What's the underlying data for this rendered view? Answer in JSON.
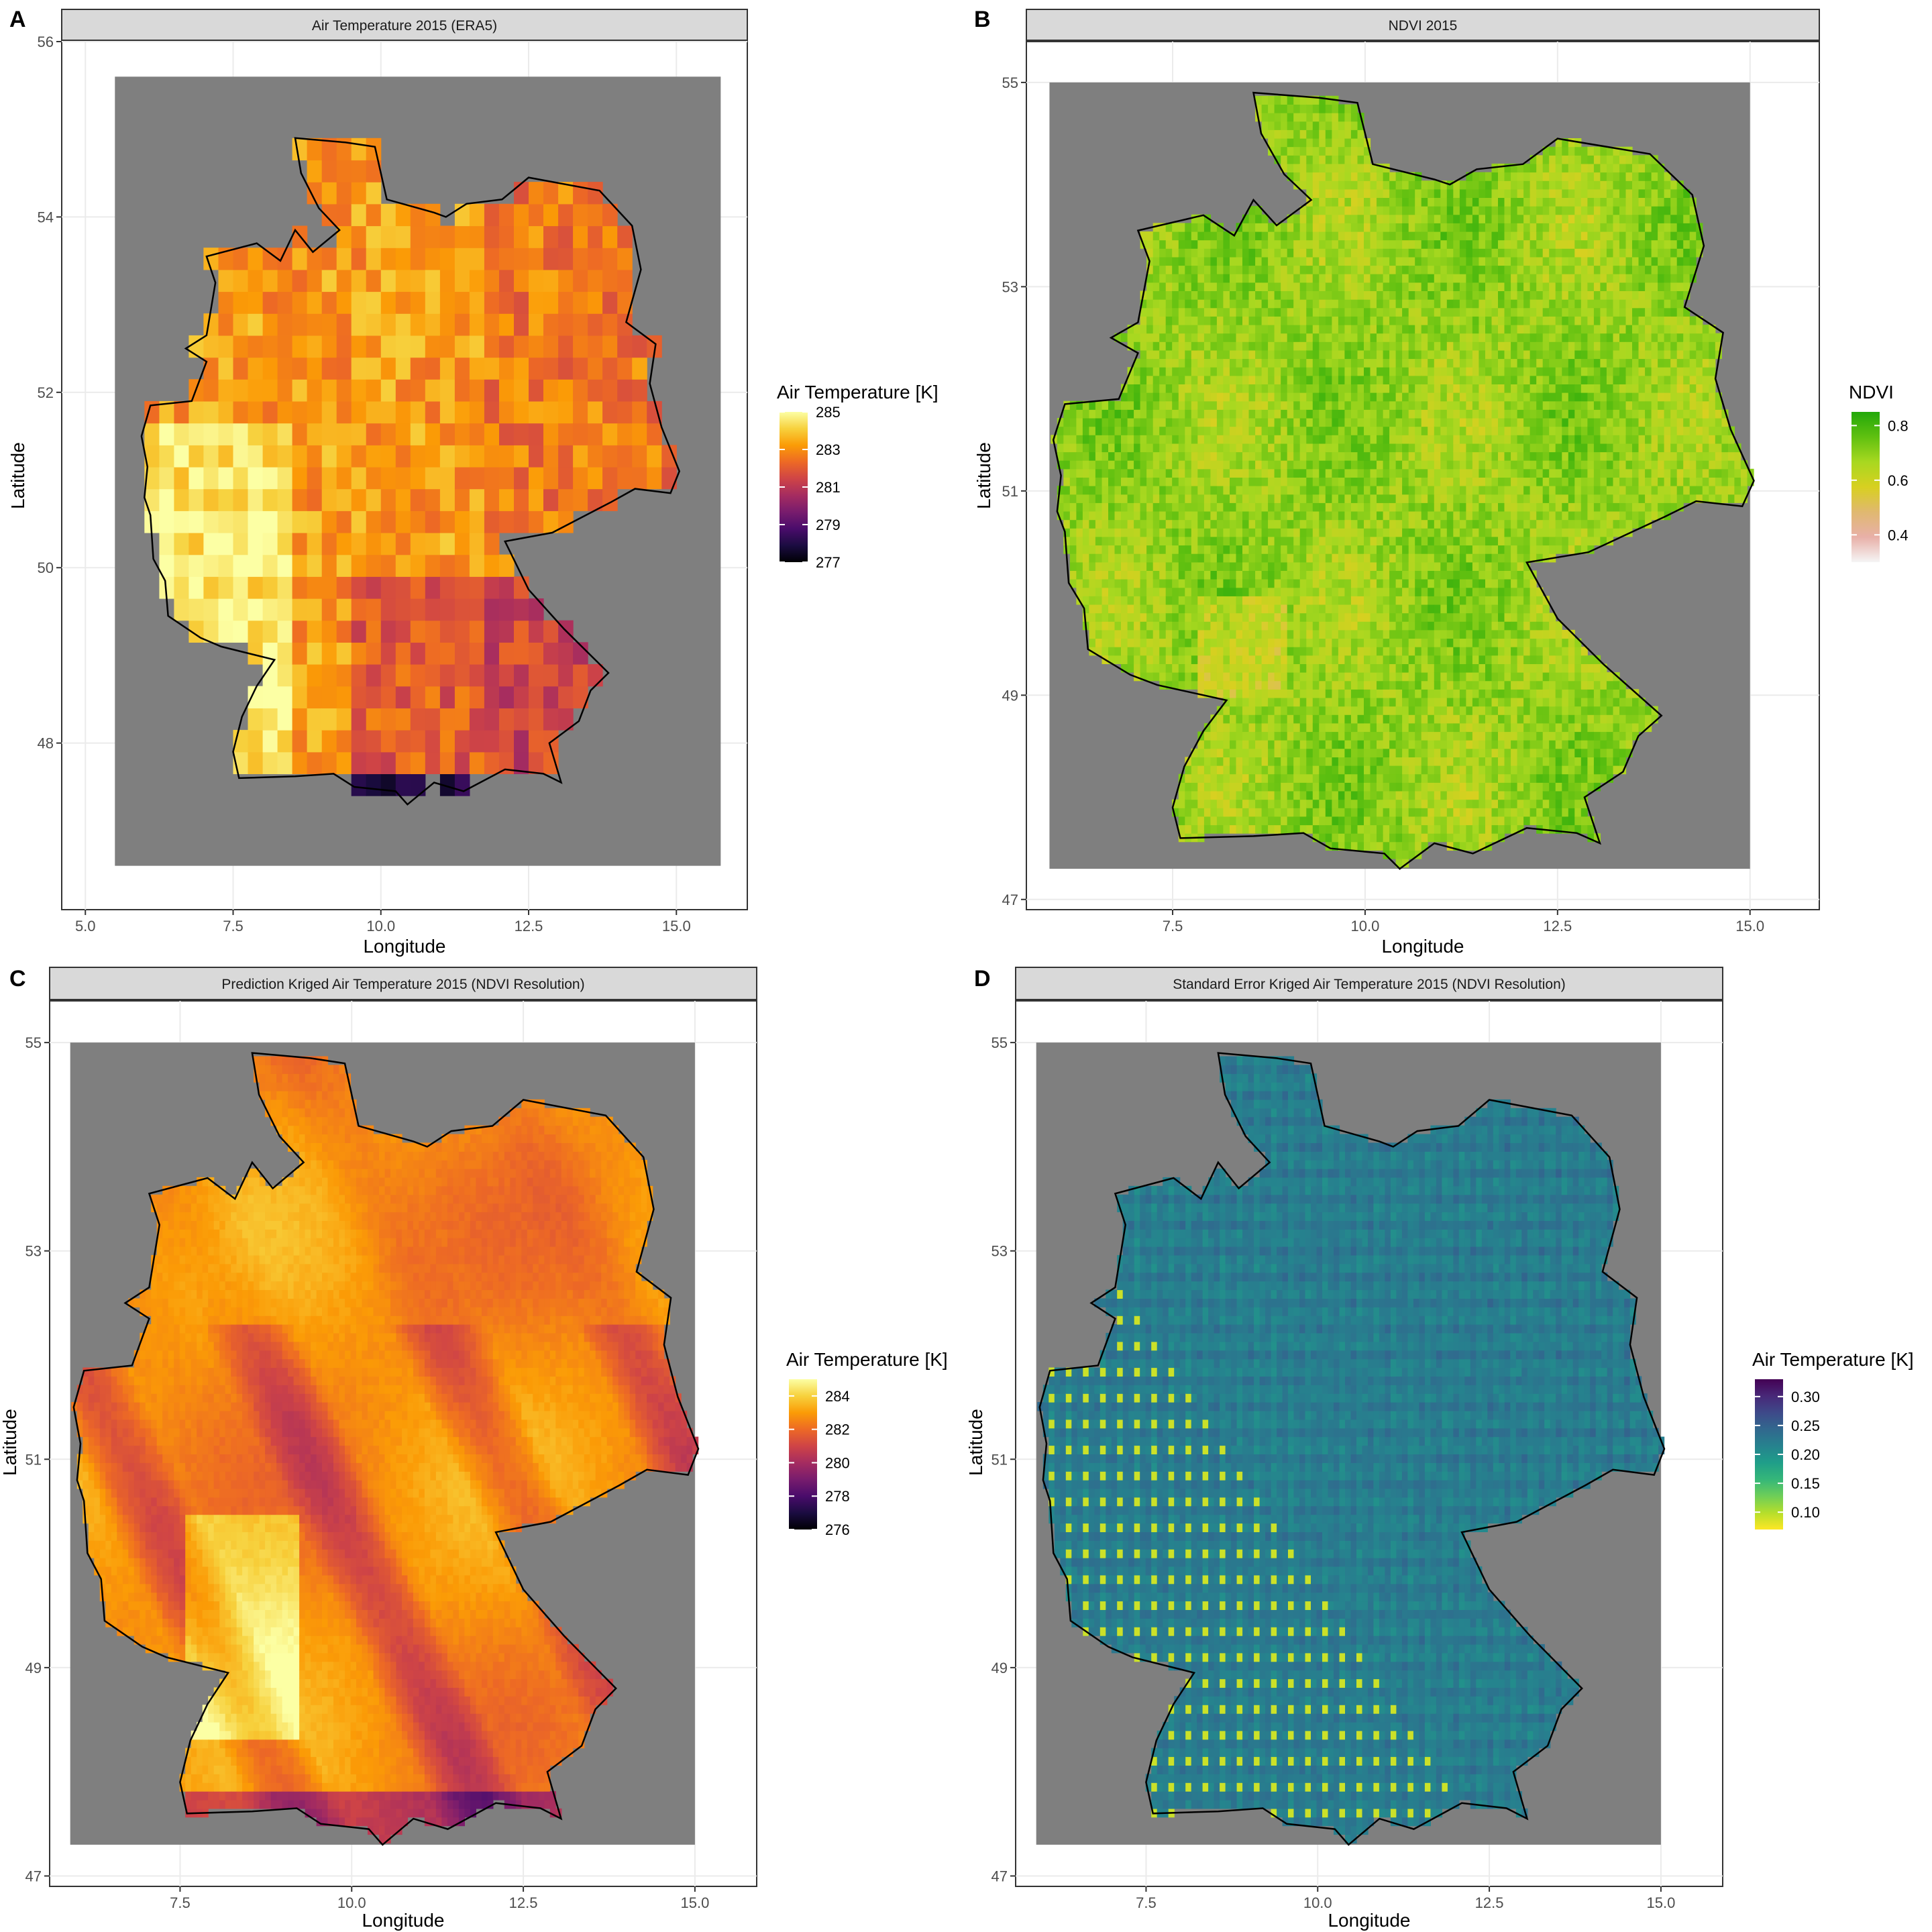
{
  "chart_data": [
    {
      "type": "heatmap",
      "panel": "A",
      "title": "Air Temperature 2015 (ERA5)",
      "xlabel": "Longitude",
      "ylabel": "Latitude",
      "xlim": [
        4.6,
        16.2
      ],
      "ylim": [
        46.1,
        56.0
      ],
      "xticks": [
        5.0,
        7.5,
        10.0,
        12.5,
        15.0
      ],
      "xtick_labels": [
        "5.0",
        "7.5",
        "10.0",
        "12.5",
        "15.0"
      ],
      "yticks": [
        48,
        50,
        52,
        54,
        56
      ],
      "ytick_labels": [
        "48",
        "50",
        "52",
        "54",
        "56"
      ],
      "grid": true,
      "palette": "inferno",
      "resolution_deg": 0.25,
      "value_range": [
        277,
        285
      ],
      "cell_pattern": "coarse",
      "legend": {
        "title": "Air Temperature [K]",
        "ticks": [
          285,
          283,
          281,
          279,
          277
        ],
        "tick_labels": [
          "285",
          "283",
          "281",
          "279",
          "277"
        ],
        "position": "right"
      },
      "background_extent": {
        "lon": [
          5.5,
          15.75
        ],
        "lat": [
          46.6,
          55.6
        ]
      }
    },
    {
      "type": "heatmap",
      "panel": "B",
      "title": "NDVI 2015",
      "xlabel": "Longitude",
      "ylabel": "Latitude",
      "xlim": [
        5.6,
        15.9
      ],
      "ylim": [
        46.9,
        55.4
      ],
      "xticks": [
        7.5,
        10.0,
        12.5,
        15.0
      ],
      "xtick_labels": [
        "7.5",
        "10.0",
        "12.5",
        "15.0"
      ],
      "yticks": [
        47,
        49,
        51,
        53,
        55
      ],
      "ytick_labels": [
        "47",
        "49",
        "51",
        "53",
        "55"
      ],
      "grid": true,
      "palette": "ndvi",
      "resolution_deg": 0.083,
      "value_range": [
        0.3,
        0.85
      ],
      "cell_pattern": "fine",
      "legend": {
        "title": "NDVI",
        "ticks": [
          0.8,
          0.6,
          0.4
        ],
        "tick_labels": [
          "0.8",
          "0.6",
          "0.4"
        ],
        "position": "right"
      },
      "background_extent": {
        "lon": [
          5.9,
          15.0
        ],
        "lat": [
          47.3,
          55.0
        ]
      }
    },
    {
      "type": "heatmap",
      "panel": "C",
      "title": "Prediction Kriged Air Temperature 2015 (NDVI Resolution)",
      "xlabel": "Longitude",
      "ylabel": "Latitude",
      "xlim": [
        5.6,
        15.9
      ],
      "ylim": [
        46.9,
        55.4
      ],
      "xticks": [
        7.5,
        10.0,
        12.5,
        15.0
      ],
      "xtick_labels": [
        "7.5",
        "10.0",
        "12.5",
        "15.0"
      ],
      "yticks": [
        47,
        49,
        51,
        53,
        55
      ],
      "ytick_labels": [
        "47",
        "49",
        "51",
        "53",
        "55"
      ],
      "grid": true,
      "palette": "inferno",
      "resolution_deg": 0.083,
      "value_range": [
        276,
        285
      ],
      "cell_pattern": "smooth",
      "legend": {
        "title": "Air Temperature [K]",
        "ticks": [
          284,
          282,
          280,
          278,
          276
        ],
        "tick_labels": [
          "284",
          "282",
          "280",
          "278",
          "276"
        ],
        "position": "right"
      },
      "background_extent": {
        "lon": [
          5.9,
          15.0
        ],
        "lat": [
          47.3,
          55.0
        ]
      }
    },
    {
      "type": "heatmap",
      "panel": "D",
      "title": "Standard Error Kriged Air Temperature 2015 (NDVI Resolution)",
      "xlabel": "Longitude",
      "ylabel": "Latitude",
      "xlim": [
        5.6,
        15.9
      ],
      "ylim": [
        46.9,
        55.4
      ],
      "xticks": [
        7.5,
        10.0,
        12.5,
        15.0
      ],
      "xtick_labels": [
        "7.5",
        "10.0",
        "12.5",
        "15.0"
      ],
      "yticks": [
        47,
        49,
        51,
        53,
        55
      ],
      "ytick_labels": [
        "47",
        "49",
        "51",
        "53",
        "55"
      ],
      "grid": true,
      "palette": "viridis_reversed",
      "resolution_deg": 0.083,
      "value_range": [
        0.07,
        0.33
      ],
      "cell_pattern": "kriging_grid",
      "legend": {
        "title": "Air Temperature [K]",
        "ticks": [
          0.3,
          0.25,
          0.2,
          0.15,
          0.1
        ],
        "tick_labels": [
          "0.30",
          "0.25",
          "0.20",
          "0.15",
          "0.10"
        ],
        "position": "right"
      },
      "background_extent": {
        "lon": [
          5.9,
          15.0
        ],
        "lat": [
          47.3,
          55.0
        ]
      }
    }
  ],
  "germany_outline_lonlat": [
    [
      6.1,
      51.85
    ],
    [
      6.8,
      51.9
    ],
    [
      7.05,
      52.35
    ],
    [
      6.7,
      52.5
    ],
    [
      7.05,
      52.65
    ],
    [
      7.2,
      53.25
    ],
    [
      7.05,
      53.55
    ],
    [
      7.9,
      53.7
    ],
    [
      8.3,
      53.5
    ],
    [
      8.55,
      53.85
    ],
    [
      8.85,
      53.6
    ],
    [
      9.3,
      53.85
    ],
    [
      8.95,
      54.1
    ],
    [
      8.65,
      54.5
    ],
    [
      8.55,
      54.9
    ],
    [
      9.4,
      54.85
    ],
    [
      9.9,
      54.8
    ],
    [
      10.1,
      54.2
    ],
    [
      10.9,
      54.05
    ],
    [
      11.1,
      54.0
    ],
    [
      11.45,
      54.15
    ],
    [
      12.05,
      54.2
    ],
    [
      12.5,
      54.45
    ],
    [
      13.7,
      54.3
    ],
    [
      14.25,
      53.9
    ],
    [
      14.4,
      53.4
    ],
    [
      14.15,
      52.8
    ],
    [
      14.65,
      52.55
    ],
    [
      14.55,
      52.1
    ],
    [
      14.75,
      51.6
    ],
    [
      15.05,
      51.1
    ],
    [
      14.9,
      50.85
    ],
    [
      14.3,
      50.9
    ],
    [
      13.9,
      50.75
    ],
    [
      12.9,
      50.4
    ],
    [
      12.1,
      50.3
    ],
    [
      12.5,
      49.75
    ],
    [
      13.1,
      49.3
    ],
    [
      13.85,
      48.8
    ],
    [
      13.55,
      48.6
    ],
    [
      13.35,
      48.25
    ],
    [
      12.85,
      48.0
    ],
    [
      13.05,
      47.55
    ],
    [
      12.75,
      47.65
    ],
    [
      12.1,
      47.7
    ],
    [
      11.4,
      47.45
    ],
    [
      10.9,
      47.55
    ],
    [
      10.45,
      47.3
    ],
    [
      10.25,
      47.45
    ],
    [
      9.55,
      47.5
    ],
    [
      9.2,
      47.65
    ],
    [
      8.55,
      47.62
    ],
    [
      7.6,
      47.6
    ],
    [
      7.5,
      47.9
    ],
    [
      7.65,
      48.3
    ],
    [
      7.9,
      48.65
    ],
    [
      8.2,
      48.95
    ],
    [
      7.3,
      49.1
    ],
    [
      6.95,
      49.2
    ],
    [
      6.4,
      49.45
    ],
    [
      6.35,
      49.85
    ],
    [
      6.15,
      50.1
    ],
    [
      6.1,
      50.6
    ],
    [
      6.0,
      50.8
    ],
    [
      6.05,
      51.15
    ],
    [
      5.95,
      51.5
    ],
    [
      6.1,
      51.85
    ]
  ]
}
